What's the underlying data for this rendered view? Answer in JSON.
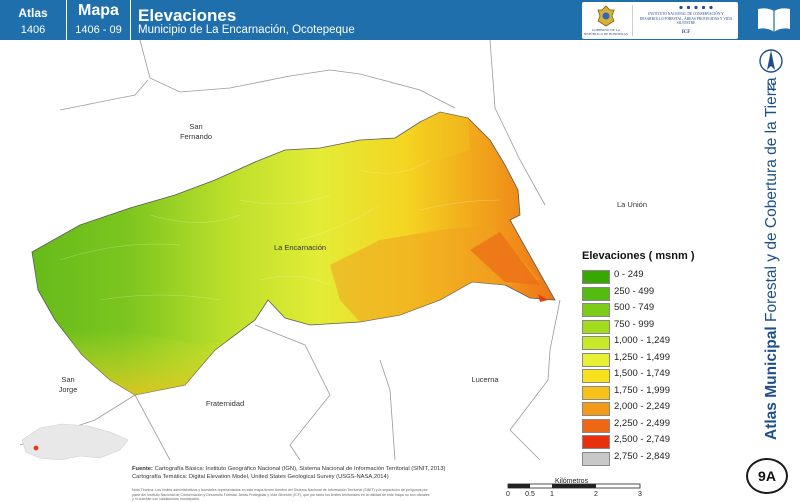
{
  "header": {
    "atlas_label": "Atlas",
    "atlas_number": "1406",
    "map_label": "Mapa",
    "map_number": "1406 - 09",
    "title": "Elevaciones",
    "subtitle": "Municipio de La Encarnación, Ocotepeque",
    "logo_left_text": "GOBIERNO DE LA REPÚBLICA DE HONDURAS",
    "logo_right_text": "INSTITUTO NACIONAL DE CONSERVACIÓN Y DESARROLLO FORESTAL, ÁREAS PROTEGIDAS Y VIDA SILVESTRE",
    "logo_right_abbr": "ICF"
  },
  "sidebar": {
    "vertical_title_bold": "Atlas Municipal",
    "vertical_title_rest": "Forestal y de Cobertura de la Tierra",
    "north_label": "N",
    "badge": "9A"
  },
  "map": {
    "place_labels": [
      "San Fernando",
      "La Unión",
      "La Encarnación",
      "San Jorge",
      "Fraternidad",
      "Lucerna"
    ]
  },
  "legend": {
    "title": "Elevaciones ( msnm )",
    "items": [
      {
        "label": "0 - 249",
        "color": "#38a800"
      },
      {
        "label": "250 - 499",
        "color": "#55bb11"
      },
      {
        "label": "500 - 749",
        "color": "#7ccc18"
      },
      {
        "label": "750 - 999",
        "color": "#a3dc1f"
      },
      {
        "label": "1,000 - 1,249",
        "color": "#c8e82a"
      },
      {
        "label": "1,250 - 1,499",
        "color": "#e8f035"
      },
      {
        "label": "1,500 - 1,749",
        "color": "#f5e21c"
      },
      {
        "label": "1,750 - 1,999",
        "color": "#f6c21a"
      },
      {
        "label": "2,000 - 2,249",
        "color": "#f39a18"
      },
      {
        "label": "2,250 - 2,499",
        "color": "#ef6614"
      },
      {
        "label": "2,500 - 2,749",
        "color": "#e8300f"
      },
      {
        "label": "2,750 - 2,849",
        "color": "#c8c8c8"
      }
    ]
  },
  "source": {
    "label": "Fuente:",
    "line1": "Cartografía Básica: Instituto Geográfico Nacional (IGN), Sistema Nacional de Información Territorial (SINIT, 2013)",
    "line2": "Cartografía Temática: Digital Elevation Model, United States Geological Survey (USGS-NASA,2014)",
    "note": "Nota Técnica: Los límites administrativos y forestales representados en este mapa tienen fuentes del Sistema Nacional de Información Territorial (SINIT) y la separación de polígonos por parte del Instituto Nacional de Conservación y Desarrollo Forestal, Áreas Protegidas y Vida Silvestre (ICF), que por tanto los limites territoriales en la utilidad de este mapa no son oficiales y ni cuentan con validaciones municipales."
  },
  "scale": {
    "unit": "Kilómetros",
    "ticks": [
      "0",
      "0.5",
      "1",
      "2",
      "3"
    ],
    "tick_values": [
      0,
      0.5,
      1,
      2,
      3
    ]
  }
}
